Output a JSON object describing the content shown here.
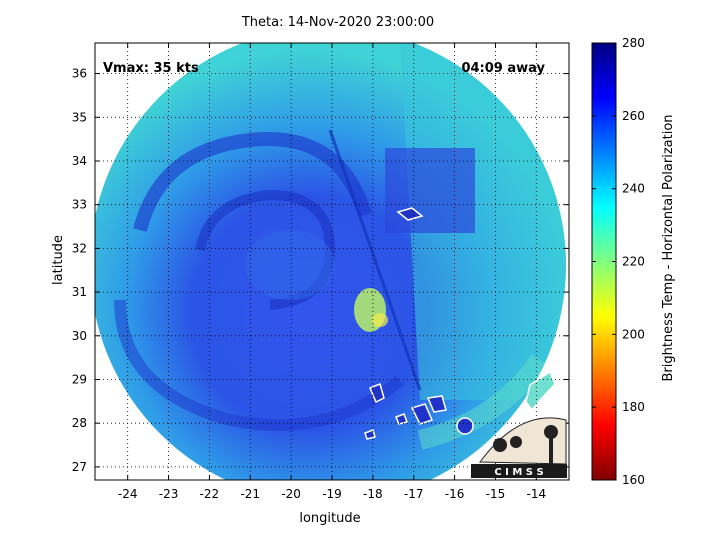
{
  "title": "Theta: 14-Nov-2020 23:00:00",
  "annotations": {
    "vmax": "Vmax: 35 kts",
    "away": "04:09 away"
  },
  "axes": {
    "xlabel": "longitude",
    "ylabel": "latitude",
    "xlim": [
      -24.8,
      -13.2
    ],
    "ylim": [
      26.7,
      36.7
    ],
    "xticks": [
      "-24",
      "-23",
      "-22",
      "-21",
      "-20",
      "-19",
      "-18",
      "-17",
      "-16",
      "-15",
      "-14"
    ],
    "yticks": [
      "27",
      "28",
      "29",
      "30",
      "31",
      "32",
      "33",
      "34",
      "35",
      "36"
    ],
    "grid": "dotted"
  },
  "colorbar": {
    "label": "Brightness Temp - Horizontal Polarization",
    "range": [
      160,
      280
    ],
    "ticks": [
      "160",
      "180",
      "200",
      "220",
      "240",
      "260",
      "280"
    ],
    "colormap": "jet"
  },
  "logo": {
    "text": "C I M S S"
  },
  "colors": {
    "outer_scan": "#33cccc",
    "inner_vortex": "#1a33dd",
    "band": "#1133cc"
  }
}
